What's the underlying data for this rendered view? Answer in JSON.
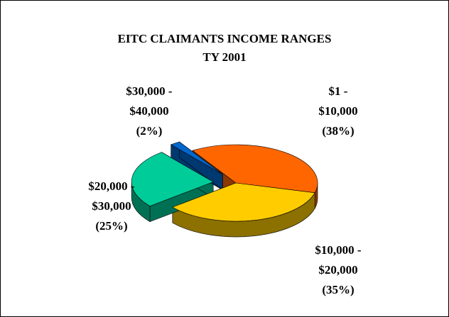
{
  "chart_data": {
    "type": "pie",
    "title": "EITC CLAIMANTS INCOME RANGES",
    "subtitle": "TY 2001",
    "categories": [
      "$1 - $10,000",
      "$10,000 - $20,000",
      "$20,000 - $30,000",
      "$30,000 - $40,000"
    ],
    "values": [
      38,
      35,
      25,
      2
    ],
    "value_labels": [
      "(38%)",
      "(35%)",
      "(25%)",
      "(2%)"
    ],
    "colors": [
      "#ff6600",
      "#ffcc00",
      "#00cc99",
      "#0066cc"
    ],
    "exploded": [
      false,
      false,
      true,
      true
    ]
  }
}
